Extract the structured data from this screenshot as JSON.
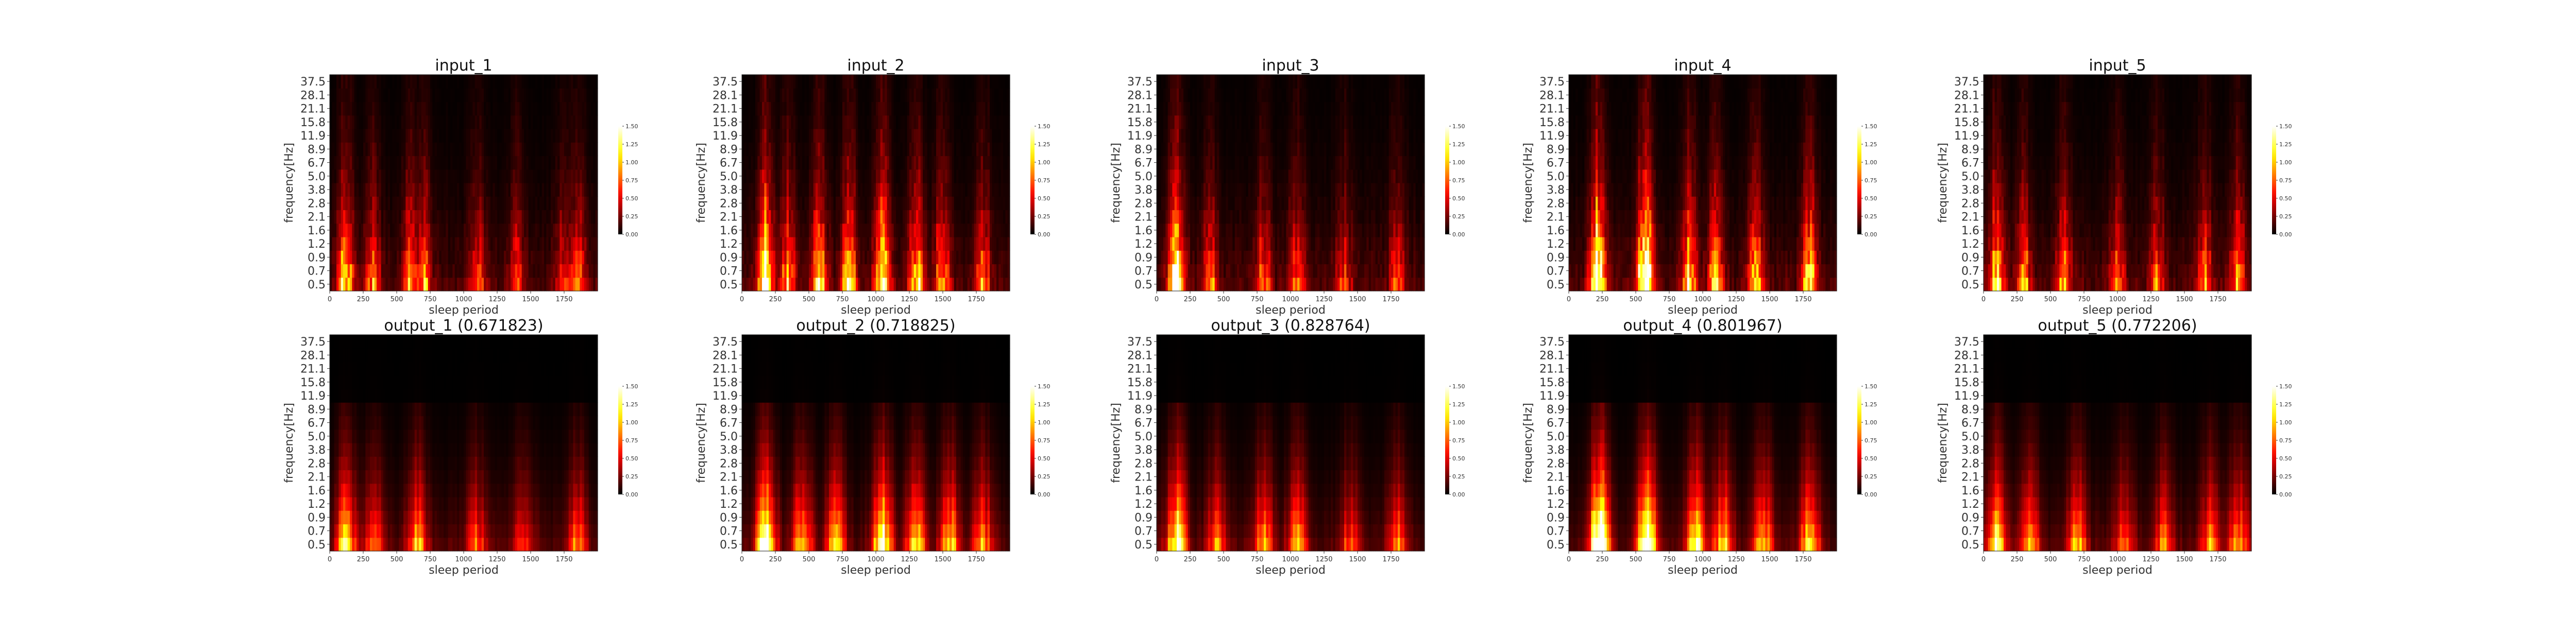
{
  "chart_data": [
    {
      "id": "input_1",
      "type": "heatmap",
      "title": "input_1",
      "xlabel": "sleep period",
      "ylabel": "frequency[Hz]",
      "xlim": [
        0,
        2000
      ],
      "xticks": [
        "0",
        "250",
        "500",
        "750",
        "1000",
        "1250",
        "1500",
        "1750"
      ],
      "yticks": [
        "0.5",
        "0.7",
        "0.9",
        "1.2",
        "1.6",
        "2.1",
        "2.8",
        "3.8",
        "5.0",
        "6.7",
        "8.9",
        "11.9",
        "15.8",
        "21.1",
        "28.1",
        "37.5"
      ],
      "colorbar": {
        "ticks": [
          "0.00",
          "0.25",
          "0.50",
          "0.75",
          "1.00",
          "1.25",
          "1.50"
        ],
        "range": [
          0,
          1.5
        ],
        "colormap": "hot"
      },
      "bright_regions": [
        {
          "x": 120,
          "level": 1.1
        },
        {
          "x": 320,
          "level": 0.7
        },
        {
          "x": 600,
          "level": 0.8
        },
        {
          "x": 700,
          "level": 0.8
        },
        {
          "x": 1100,
          "level": 0.6
        },
        {
          "x": 1400,
          "level": 0.5
        },
        {
          "x": 1750,
          "level": 0.6
        },
        {
          "x": 1850,
          "level": 0.7
        }
      ]
    },
    {
      "id": "input_2",
      "type": "heatmap",
      "title": "input_2",
      "xlabel": "sleep period",
      "ylabel": "frequency[Hz]",
      "xlim": [
        0,
        2000
      ],
      "xticks": [
        "0",
        "250",
        "500",
        "750",
        "1000",
        "1250",
        "1500",
        "1750"
      ],
      "yticks": [
        "0.5",
        "0.7",
        "0.9",
        "1.2",
        "1.6",
        "2.1",
        "2.8",
        "3.8",
        "5.0",
        "6.7",
        "8.9",
        "11.9",
        "15.8",
        "21.1",
        "28.1",
        "37.5"
      ],
      "colorbar": {
        "ticks": [
          "0.00",
          "0.25",
          "0.50",
          "0.75",
          "1.00",
          "1.25",
          "1.50"
        ],
        "range": [
          0,
          1.5
        ],
        "colormap": "hot"
      },
      "bright_regions": [
        {
          "x": 180,
          "level": 1.5
        },
        {
          "x": 350,
          "level": 0.9
        },
        {
          "x": 580,
          "level": 1.0
        },
        {
          "x": 800,
          "level": 1.0
        },
        {
          "x": 1050,
          "level": 1.3
        },
        {
          "x": 1300,
          "level": 1.0
        },
        {
          "x": 1500,
          "level": 0.9
        },
        {
          "x": 1800,
          "level": 0.7
        }
      ]
    },
    {
      "id": "input_3",
      "type": "heatmap",
      "title": "input_3",
      "xlabel": "sleep period",
      "ylabel": "frequency[Hz]",
      "xlim": [
        0,
        2000
      ],
      "xticks": [
        "0",
        "250",
        "500",
        "750",
        "1000",
        "1250",
        "1500",
        "1750"
      ],
      "yticks": [
        "0.5",
        "0.7",
        "0.9",
        "1.2",
        "1.6",
        "2.1",
        "2.8",
        "3.8",
        "5.0",
        "6.7",
        "8.9",
        "11.9",
        "15.8",
        "21.1",
        "28.1",
        "37.5"
      ],
      "colorbar": {
        "ticks": [
          "0.00",
          "0.25",
          "0.50",
          "0.75",
          "1.00",
          "1.25",
          "1.50"
        ],
        "range": [
          0,
          1.5
        ],
        "colormap": "hot"
      },
      "bright_regions": [
        {
          "x": 150,
          "level": 1.4
        },
        {
          "x": 400,
          "level": 0.6
        },
        {
          "x": 800,
          "level": 0.7
        },
        {
          "x": 1050,
          "level": 0.7
        },
        {
          "x": 1400,
          "level": 0.5
        },
        {
          "x": 1800,
          "level": 0.6
        }
      ]
    },
    {
      "id": "input_4",
      "type": "heatmap",
      "title": "input_4",
      "xlabel": "sleep period",
      "ylabel": "frequency[Hz]",
      "xlim": [
        0,
        2000
      ],
      "xticks": [
        "0",
        "250",
        "500",
        "750",
        "1000",
        "1250",
        "1500",
        "1750"
      ],
      "yticks": [
        "0.5",
        "0.7",
        "0.9",
        "1.2",
        "1.6",
        "2.1",
        "2.8",
        "3.8",
        "5.0",
        "6.7",
        "8.9",
        "11.9",
        "15.8",
        "21.1",
        "28.1",
        "37.5"
      ],
      "colorbar": {
        "ticks": [
          "0.00",
          "0.25",
          "0.50",
          "0.75",
          "1.00",
          "1.25",
          "1.50"
        ],
        "range": [
          0,
          1.5
        ],
        "colormap": "hot"
      },
      "bright_regions": [
        {
          "x": 220,
          "level": 1.8
        },
        {
          "x": 570,
          "level": 1.8
        },
        {
          "x": 900,
          "level": 1.1
        },
        {
          "x": 1100,
          "level": 1.0
        },
        {
          "x": 1400,
          "level": 0.9
        },
        {
          "x": 1800,
          "level": 1.1
        }
      ]
    },
    {
      "id": "input_5",
      "type": "heatmap",
      "title": "input_5",
      "xlabel": "sleep period",
      "ylabel": "frequency[Hz]",
      "xlim": [
        0,
        2000
      ],
      "xticks": [
        "0",
        "250",
        "500",
        "750",
        "1000",
        "1250",
        "1500",
        "1750"
      ],
      "yticks": [
        "0.5",
        "0.7",
        "0.9",
        "1.2",
        "1.6",
        "2.1",
        "2.8",
        "3.8",
        "5.0",
        "6.7",
        "8.9",
        "11.9",
        "15.8",
        "21.1",
        "28.1",
        "37.5"
      ],
      "colorbar": {
        "ticks": [
          "0.00",
          "0.25",
          "0.50",
          "0.75",
          "1.00",
          "1.25",
          "1.50"
        ],
        "range": [
          0,
          1.5
        ],
        "colormap": "hot"
      },
      "bright_regions": [
        {
          "x": 100,
          "level": 1.1
        },
        {
          "x": 300,
          "level": 0.7
        },
        {
          "x": 600,
          "level": 0.7
        },
        {
          "x": 1000,
          "level": 0.6
        },
        {
          "x": 1300,
          "level": 0.6
        },
        {
          "x": 1650,
          "level": 0.7
        },
        {
          "x": 1900,
          "level": 0.8
        }
      ]
    },
    {
      "id": "output_1",
      "type": "heatmap",
      "title": "output_1 (0.671823)",
      "xlabel": "sleep period",
      "ylabel": "frequency[Hz]",
      "xlim": [
        0,
        2000
      ],
      "xticks": [
        "0",
        "250",
        "500",
        "750",
        "1000",
        "1250",
        "1500",
        "1750"
      ],
      "yticks": [
        "0.5",
        "0.7",
        "0.9",
        "1.2",
        "1.6",
        "2.1",
        "2.8",
        "3.8",
        "5.0",
        "6.7",
        "8.9",
        "11.9",
        "15.8",
        "21.1",
        "28.1",
        "37.5"
      ],
      "colorbar": {
        "ticks": [
          "0.00",
          "0.25",
          "0.50",
          "0.75",
          "1.00",
          "1.25",
          "1.50"
        ],
        "range": [
          0,
          1.5
        ],
        "colormap": "hot"
      },
      "bright_regions": [
        {
          "x": 120,
          "level": 1.1
        },
        {
          "x": 330,
          "level": 0.7
        },
        {
          "x": 650,
          "level": 0.9
        },
        {
          "x": 1100,
          "level": 0.6
        },
        {
          "x": 1450,
          "level": 0.6
        },
        {
          "x": 1850,
          "level": 0.7
        }
      ]
    },
    {
      "id": "output_2",
      "type": "heatmap",
      "title": "output_2 (0.718825)",
      "xlabel": "sleep period",
      "ylabel": "frequency[Hz]",
      "xlim": [
        0,
        2000
      ],
      "xticks": [
        "0",
        "250",
        "500",
        "750",
        "1000",
        "1250",
        "1500",
        "1750"
      ],
      "yticks": [
        "0.5",
        "0.7",
        "0.9",
        "1.2",
        "1.6",
        "2.1",
        "2.8",
        "3.8",
        "5.0",
        "6.7",
        "8.9",
        "11.9",
        "15.8",
        "21.1",
        "28.1",
        "37.5"
      ],
      "colorbar": {
        "ticks": [
          "0.00",
          "0.25",
          "0.50",
          "0.75",
          "1.00",
          "1.25",
          "1.50"
        ],
        "range": [
          0,
          1.5
        ],
        "colormap": "hot"
      },
      "bright_regions": [
        {
          "x": 180,
          "level": 1.5
        },
        {
          "x": 450,
          "level": 1.0
        },
        {
          "x": 700,
          "level": 1.0
        },
        {
          "x": 1050,
          "level": 1.4
        },
        {
          "x": 1300,
          "level": 1.0
        },
        {
          "x": 1550,
          "level": 1.0
        },
        {
          "x": 1800,
          "level": 0.8
        }
      ]
    },
    {
      "id": "output_3",
      "type": "heatmap",
      "title": "output_3 (0.828764)",
      "xlabel": "sleep period",
      "ylabel": "frequency[Hz]",
      "xlim": [
        0,
        2000
      ],
      "xticks": [
        "0",
        "250",
        "500",
        "750",
        "1000",
        "1250",
        "1500",
        "1750"
      ],
      "yticks": [
        "0.5",
        "0.7",
        "0.9",
        "1.2",
        "1.6",
        "2.1",
        "2.8",
        "3.8",
        "5.0",
        "6.7",
        "8.9",
        "11.9",
        "15.8",
        "21.1",
        "28.1",
        "37.5"
      ],
      "colorbar": {
        "ticks": [
          "0.00",
          "0.25",
          "0.50",
          "0.75",
          "1.00",
          "1.25",
          "1.50"
        ],
        "range": [
          0,
          1.5
        ],
        "colormap": "hot"
      },
      "bright_regions": [
        {
          "x": 150,
          "level": 1.4
        },
        {
          "x": 450,
          "level": 0.7
        },
        {
          "x": 800,
          "level": 0.8
        },
        {
          "x": 1050,
          "level": 0.8
        },
        {
          "x": 1450,
          "level": 0.6
        },
        {
          "x": 1800,
          "level": 0.7
        }
      ]
    },
    {
      "id": "output_4",
      "type": "heatmap",
      "title": "output_4 (0.801967)",
      "xlabel": "sleep period",
      "ylabel": "frequency[Hz]",
      "xlim": [
        0,
        2000
      ],
      "xticks": [
        "0",
        "250",
        "500",
        "750",
        "1000",
        "1250",
        "1500",
        "1750"
      ],
      "yticks": [
        "0.5",
        "0.7",
        "0.9",
        "1.2",
        "1.6",
        "2.1",
        "2.8",
        "3.8",
        "5.0",
        "6.7",
        "8.9",
        "11.9",
        "15.8",
        "21.1",
        "28.1",
        "37.5"
      ],
      "colorbar": {
        "ticks": [
          "0.00",
          "0.25",
          "0.50",
          "0.75",
          "1.00",
          "1.25",
          "1.50"
        ],
        "range": [
          0,
          1.5
        ],
        "colormap": "hot"
      },
      "bright_regions": [
        {
          "x": 230,
          "level": 1.9
        },
        {
          "x": 580,
          "level": 1.9
        },
        {
          "x": 950,
          "level": 1.1
        },
        {
          "x": 1150,
          "level": 1.0
        },
        {
          "x": 1450,
          "level": 1.0
        },
        {
          "x": 1800,
          "level": 1.1
        }
      ]
    },
    {
      "id": "output_5",
      "type": "heatmap",
      "title": "output_5 (0.772206)",
      "xlabel": "sleep period",
      "ylabel": "frequency[Hz]",
      "xlim": [
        0,
        2000
      ],
      "xticks": [
        "0",
        "250",
        "500",
        "750",
        "1000",
        "1250",
        "1500",
        "1750"
      ],
      "yticks": [
        "0.5",
        "0.7",
        "0.9",
        "1.2",
        "1.6",
        "2.1",
        "2.8",
        "3.8",
        "5.0",
        "6.7",
        "8.9",
        "11.9",
        "15.8",
        "21.1",
        "28.1",
        "37.5"
      ],
      "colorbar": {
        "ticks": [
          "0.00",
          "0.25",
          "0.50",
          "0.75",
          "1.00",
          "1.25",
          "1.50"
        ],
        "range": [
          0,
          1.5
        ],
        "colormap": "hot"
      },
      "bright_regions": [
        {
          "x": 100,
          "level": 1.1
        },
        {
          "x": 350,
          "level": 0.8
        },
        {
          "x": 700,
          "level": 0.8
        },
        {
          "x": 1050,
          "level": 0.7
        },
        {
          "x": 1350,
          "level": 0.7
        },
        {
          "x": 1700,
          "level": 0.8
        },
        {
          "x": 1900,
          "level": 0.9
        }
      ]
    }
  ]
}
